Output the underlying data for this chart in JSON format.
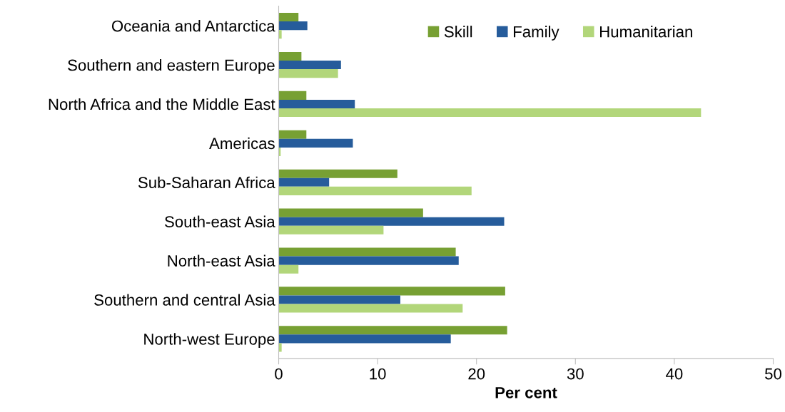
{
  "chart_data": {
    "type": "bar",
    "orientation": "horizontal",
    "xlabel": "Per cent",
    "categories": [
      "Oceania and Antarctica",
      "Southern and eastern Europe",
      "North Africa and the Middle East",
      "Americas",
      "Sub-Saharan Africa",
      "South-east Asia",
      "North-east Asia",
      "Southern and central Asia",
      "North-west Europe"
    ],
    "series": [
      {
        "name": "Skill",
        "color": "#77a033",
        "values": [
          2.0,
          2.3,
          2.8,
          2.8,
          12.0,
          14.6,
          17.9,
          22.9,
          23.1
        ]
      },
      {
        "name": "Family",
        "color": "#265c9b",
        "values": [
          2.9,
          6.3,
          7.7,
          7.5,
          5.1,
          22.8,
          18.2,
          12.3,
          17.4
        ]
      },
      {
        "name": "Humanitarian",
        "color": "#b2d67a",
        "values": [
          0.3,
          6.0,
          42.7,
          0.2,
          19.5,
          10.6,
          2.0,
          18.6,
          0.3
        ]
      }
    ],
    "xlim": [
      0,
      50
    ],
    "xticks": [
      0,
      10,
      20,
      30,
      40,
      50
    ],
    "grid": false,
    "legend": "top right"
  }
}
